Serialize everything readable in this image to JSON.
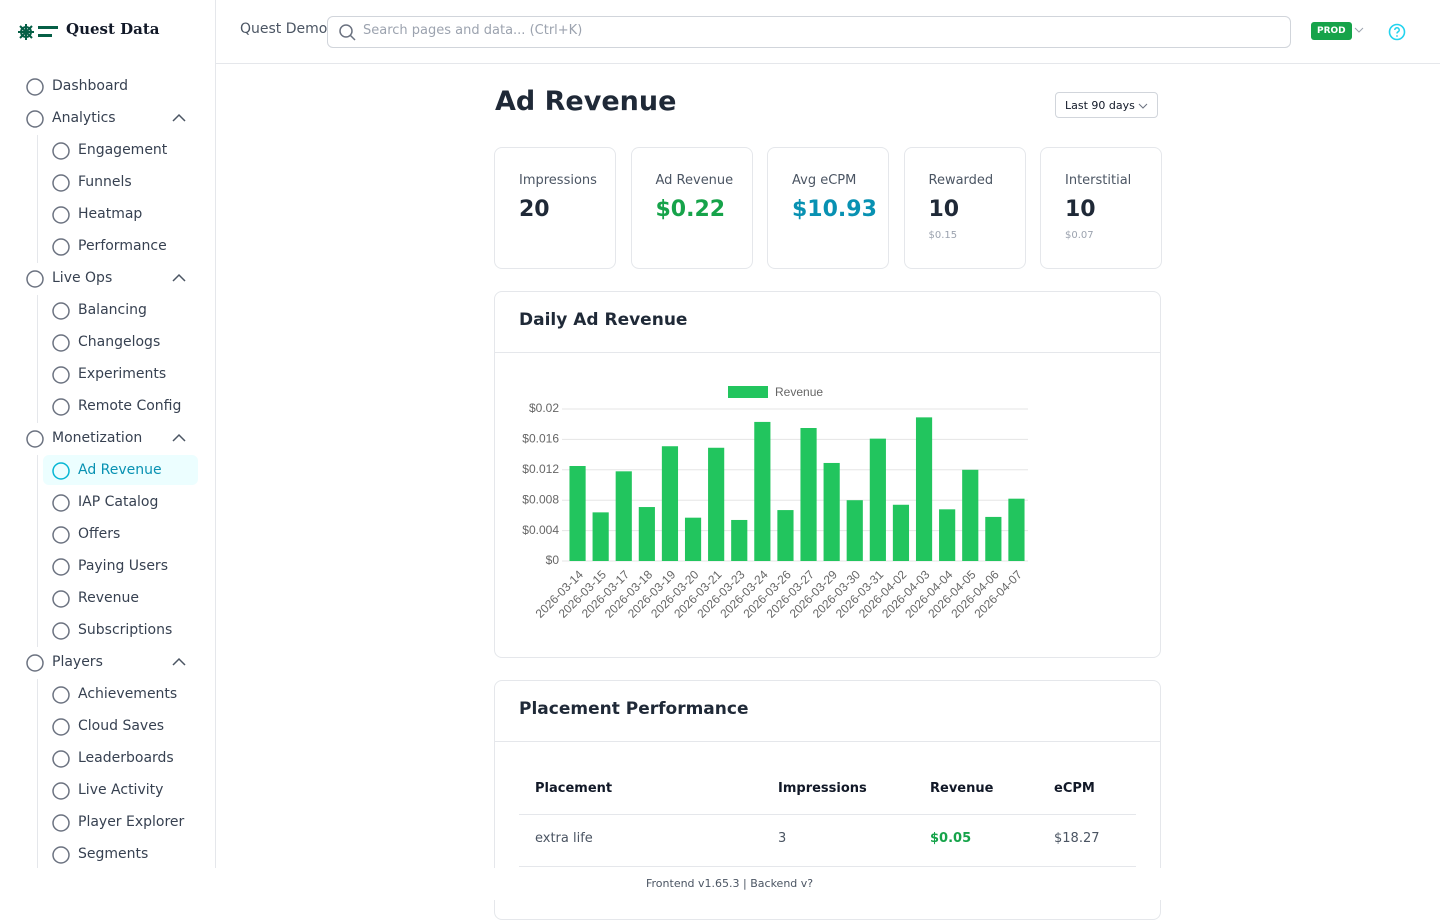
{
  "sidebar": {
    "brand": "Quest Data",
    "nav": [
      {
        "label": "Dashboard"
      },
      {
        "label": "Analytics",
        "children": [
          {
            "label": "Engagement"
          },
          {
            "label": "Funnels"
          },
          {
            "label": "Heatmap"
          },
          {
            "label": "Performance"
          }
        ]
      },
      {
        "label": "Live Ops",
        "children": [
          {
            "label": "Balancing"
          },
          {
            "label": "Changelogs"
          },
          {
            "label": "Experiments"
          },
          {
            "label": "Remote Config"
          }
        ]
      },
      {
        "label": "Monetization",
        "children": [
          {
            "label": "Ad Revenue",
            "active": true
          },
          {
            "label": "IAP Catalog"
          },
          {
            "label": "Offers"
          },
          {
            "label": "Paying Users"
          },
          {
            "label": "Revenue"
          },
          {
            "label": "Subscriptions"
          }
        ]
      },
      {
        "label": "Players",
        "children": [
          {
            "label": "Achievements"
          },
          {
            "label": "Cloud Saves"
          },
          {
            "label": "Leaderboards"
          },
          {
            "label": "Live Activity"
          },
          {
            "label": "Player Explorer"
          },
          {
            "label": "Segments"
          }
        ]
      }
    ]
  },
  "header": {
    "project": "Quest Demo",
    "search_placeholder": "Search pages and data... (Ctrl+K)",
    "environment": "PROD"
  },
  "page": {
    "title": "Ad Revenue",
    "date_range": "Last 90 days"
  },
  "kpis": [
    {
      "label": "Impressions",
      "value": "20"
    },
    {
      "label": "Ad Revenue",
      "value": "$0.22",
      "color": "#16a34a"
    },
    {
      "label": "Avg eCPM",
      "value": "$10.93",
      "color": "#0891b2"
    },
    {
      "label": "Rewarded",
      "value": "10",
      "sub": "$0.15"
    },
    {
      "label": "Interstitial",
      "value": "10",
      "sub": "$0.07"
    }
  ],
  "chart_data": {
    "type": "bar",
    "title": "Daily Ad Revenue",
    "categories": [
      "2026-03-14",
      "2026-03-15",
      "2026-03-17",
      "2026-03-18",
      "2026-03-19",
      "2026-03-20",
      "2026-03-21",
      "2026-03-23",
      "2026-03-24",
      "2026-03-26",
      "2026-03-27",
      "2026-03-29",
      "2026-03-30",
      "2026-03-31",
      "2026-04-02",
      "2026-04-03",
      "2026-04-04",
      "2026-04-05",
      "2026-04-06",
      "2026-04-07"
    ],
    "series": [
      {
        "name": "Revenue",
        "color": "#22c55e",
        "values": [
          0.0125,
          0.0064,
          0.0118,
          0.0071,
          0.0151,
          0.0057,
          0.0149,
          0.0054,
          0.0183,
          0.0067,
          0.0175,
          0.0129,
          0.008,
          0.0161,
          0.0074,
          0.0189,
          0.0068,
          0.012,
          0.0058,
          0.0082
        ]
      }
    ],
    "ylim": [
      0,
      0.02
    ],
    "yticks": [
      {
        "value": 0,
        "label": "$0"
      },
      {
        "value": 0.004,
        "label": "$0.004"
      },
      {
        "value": 0.008,
        "label": "$0.008"
      },
      {
        "value": 0.012,
        "label": "$0.012"
      },
      {
        "value": 0.016,
        "label": "$0.016"
      },
      {
        "value": 0.02,
        "label": "$0.02"
      }
    ],
    "grid": true,
    "legend": "top"
  },
  "table": {
    "title": "Placement Performance",
    "columns": [
      "Placement",
      "Impressions",
      "Revenue",
      "eCPM"
    ],
    "rows": [
      [
        "extra life",
        "3",
        "$0.05",
        "$18.27"
      ]
    ]
  },
  "footer": "Frontend v1.65.3 | Backend v?"
}
